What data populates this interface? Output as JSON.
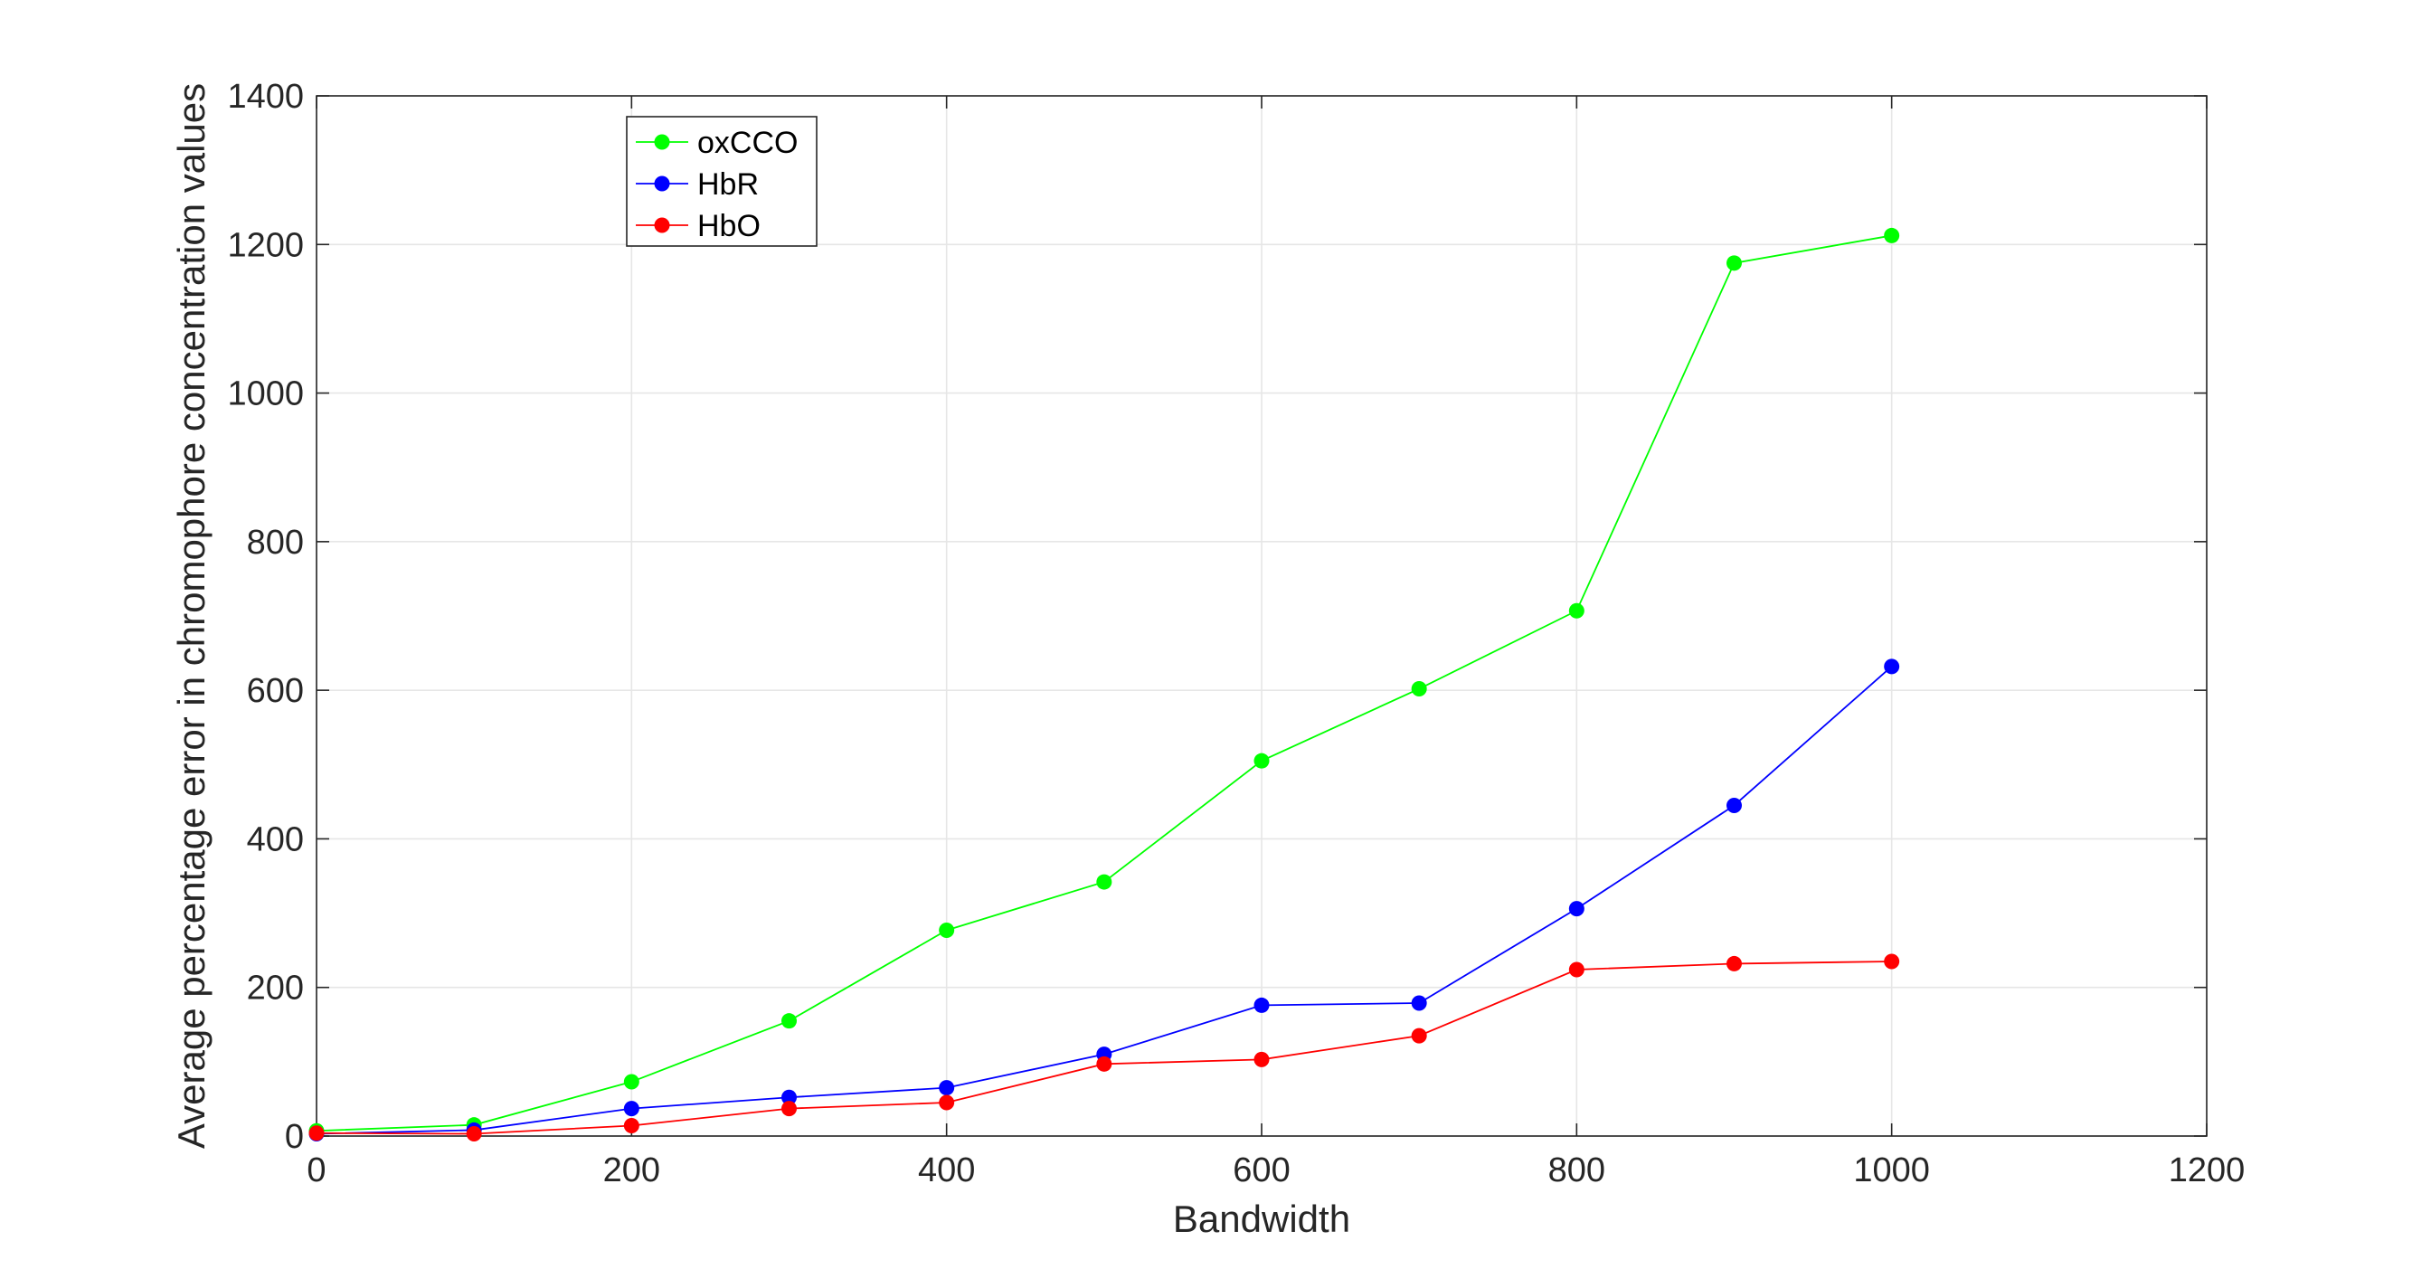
{
  "chart_data": {
    "type": "line",
    "title": "",
    "xlabel": "Bandwidth",
    "ylabel": "Average percentage error in chromophore concentration values",
    "xlim": [
      0,
      1200
    ],
    "ylim": [
      0,
      1400
    ],
    "xticks": [
      0,
      200,
      400,
      600,
      800,
      1000,
      1200
    ],
    "yticks": [
      0,
      200,
      400,
      600,
      800,
      1000,
      1200,
      1400
    ],
    "xtick_labels": [
      "0",
      "200",
      "400",
      "600",
      "800",
      "1000",
      "1200"
    ],
    "ytick_labels": [
      "0",
      "200",
      "400",
      "600",
      "800",
      "1000",
      "1200",
      "1400"
    ],
    "grid": true,
    "legend_position": "top-left",
    "x": [
      0,
      100,
      200,
      300,
      400,
      500,
      600,
      700,
      800,
      900,
      1000
    ],
    "series": [
      {
        "name": "oxCCO",
        "color": "#00ff00",
        "values": [
          7,
          15,
          73,
          155,
          277,
          342,
          505,
          602,
          707,
          1175,
          1212
        ]
      },
      {
        "name": "HbR",
        "color": "#0000ff",
        "values": [
          3,
          8,
          37,
          52,
          65,
          110,
          176,
          179,
          306,
          445,
          632
        ]
      },
      {
        "name": "HbO",
        "color": "#ff0000",
        "values": [
          4,
          3,
          14,
          37,
          45,
          97,
          103,
          135,
          224,
          232,
          235
        ]
      }
    ]
  }
}
